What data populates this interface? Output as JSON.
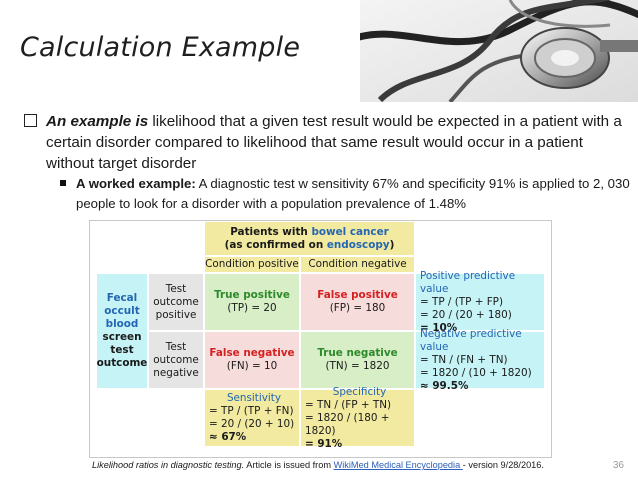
{
  "slide": {
    "title": "Calculation Example",
    "page_number": "36"
  },
  "bullet1": {
    "lead": "An example is",
    "rest": " likelihood that a given test result would be expected in a patient with a certain disorder compared to likelihood that same result would occur in a patient without target disorder"
  },
  "bullet2": {
    "lead": "A worked example:",
    "rest": " A diagnostic test w sensitivity 67% and specificity 91% is applied to 2, 030 people to look for a disorder with a population prevalence of 1.48%"
  },
  "table": {
    "header": {
      "line1": "Patients with ",
      "line1_colored": "bowel cancer",
      "line2a": "(as confirmed on ",
      "line2_colored": "endoscopy",
      "line2b": ")"
    },
    "col_pos": "Condition positive",
    "col_neg": "Condition negative",
    "row_label": {
      "l1": "Fecal",
      "l2": "occult",
      "l3": "blood",
      "l4": "screen",
      "l5": "test",
      "l6": "outcome"
    },
    "test_pos": {
      "l1": "Test",
      "l2": "outcome",
      "l3": "positive"
    },
    "test_neg": {
      "l1": "Test",
      "l2": "outcome",
      "l3": "negative"
    },
    "tp": {
      "title": "True positive",
      "value": "(TP) = 20"
    },
    "fp": {
      "title": "False positive",
      "value": "(FP) = 180"
    },
    "fn": {
      "title": "False negative",
      "value": "(FN) = 10"
    },
    "tn": {
      "title": "True negative",
      "value": "(TN) = 1820"
    },
    "ppv": {
      "title": "Positive predictive value",
      "l1": "= TP / (TP + FP)",
      "l2": "= 20 / (20 + 180)",
      "l3": "= 10%"
    },
    "npv": {
      "title": "Negative predictive value",
      "l1": "= TN / (FN + TN)",
      "l2": "= 1820 / (10 + 1820)",
      "l3": "≈ 99.5%"
    },
    "sens": {
      "title": "Sensitivity",
      "l1": "= TP / (TP + FN)",
      "l2": "= 20 / (20 + 10)",
      "l3": "≈ 67%"
    },
    "spec": {
      "title": "Specificity",
      "l1": "= TN / (FP + TN)",
      "l2": "= 1820 / (180 + 1820)",
      "l3": "= 91%"
    }
  },
  "footer": {
    "italic": "Likelihood ratios in diagnostic testing.",
    "text1": " Article is issued from ",
    "link": "WikiMed Medical Encyclopedia ",
    "text2": "- version 9/28/2016."
  }
}
